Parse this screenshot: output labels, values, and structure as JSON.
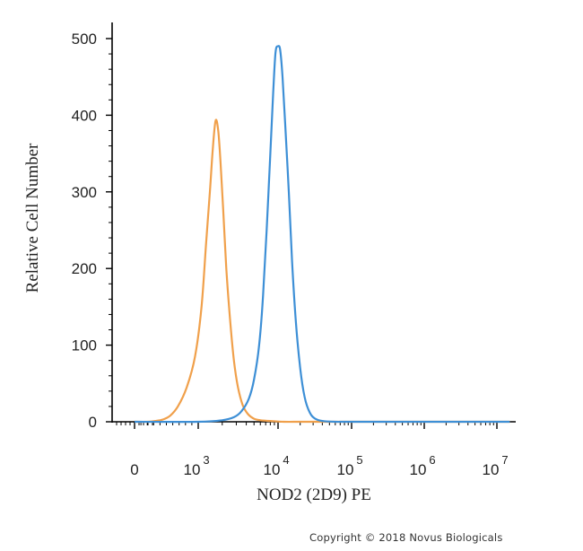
{
  "chart_data": {
    "type": "line",
    "title": "",
    "xlabel": "NOD2 (2D9) PE",
    "ylabel": "Relative Cell Number",
    "x_scale": "biexponential",
    "ylim": [
      0,
      500
    ],
    "y_ticks": [
      0,
      100,
      200,
      300,
      400,
      500
    ],
    "x_ticks": [
      {
        "value": 0,
        "base": "0",
        "exp": ""
      },
      {
        "value": 1000,
        "base": "10",
        "exp": "3"
      },
      {
        "value": 10000,
        "base": "10",
        "exp": "4"
      },
      {
        "value": 100000,
        "base": "10",
        "exp": "5"
      },
      {
        "value": 1000000,
        "base": "10",
        "exp": "6"
      },
      {
        "value": 10000000,
        "base": "10",
        "exp": "7"
      }
    ],
    "grid": false,
    "legend": "none",
    "series": [
      {
        "color": "#f0a04b",
        "x": [
          0,
          200,
          330,
          450,
          560,
          680,
          820,
          950,
          1100,
          1250,
          1400,
          1520,
          1650,
          1780,
          1900,
          2050,
          2250,
          2500,
          2800,
          3150,
          3600,
          4200,
          5000,
          6000,
          8000,
          12000,
          20000,
          40000,
          100000,
          1000000,
          15000000
        ],
        "y": [
          0,
          0,
          1,
          3,
          8,
          20,
          45,
          85,
          150,
          230,
          300,
          355,
          393,
          380,
          340,
          280,
          200,
          135,
          80,
          45,
          22,
          10,
          4,
          2,
          1,
          0,
          0,
          0,
          0,
          0,
          0
        ]
      },
      {
        "color": "#3d8fd6",
        "x": [
          0,
          1000,
          2000,
          2800,
          3500,
          4300,
          5000,
          5800,
          6500,
          7200,
          8000,
          8700,
          9300,
          10000,
          10700,
          11500,
          12500,
          14000,
          15500,
          17500,
          20000,
          23000,
          27000,
          32000,
          40000,
          60000,
          100000,
          1000000,
          15000000
        ],
        "y": [
          0,
          0,
          2,
          6,
          14,
          30,
          55,
          100,
          165,
          250,
          350,
          430,
          482,
          490,
          485,
          450,
          390,
          300,
          210,
          130,
          70,
          32,
          12,
          4,
          1,
          0,
          0,
          0,
          0
        ]
      }
    ]
  },
  "footer": {
    "copyright": "Copyright © 2018 Novus Biologicals"
  }
}
